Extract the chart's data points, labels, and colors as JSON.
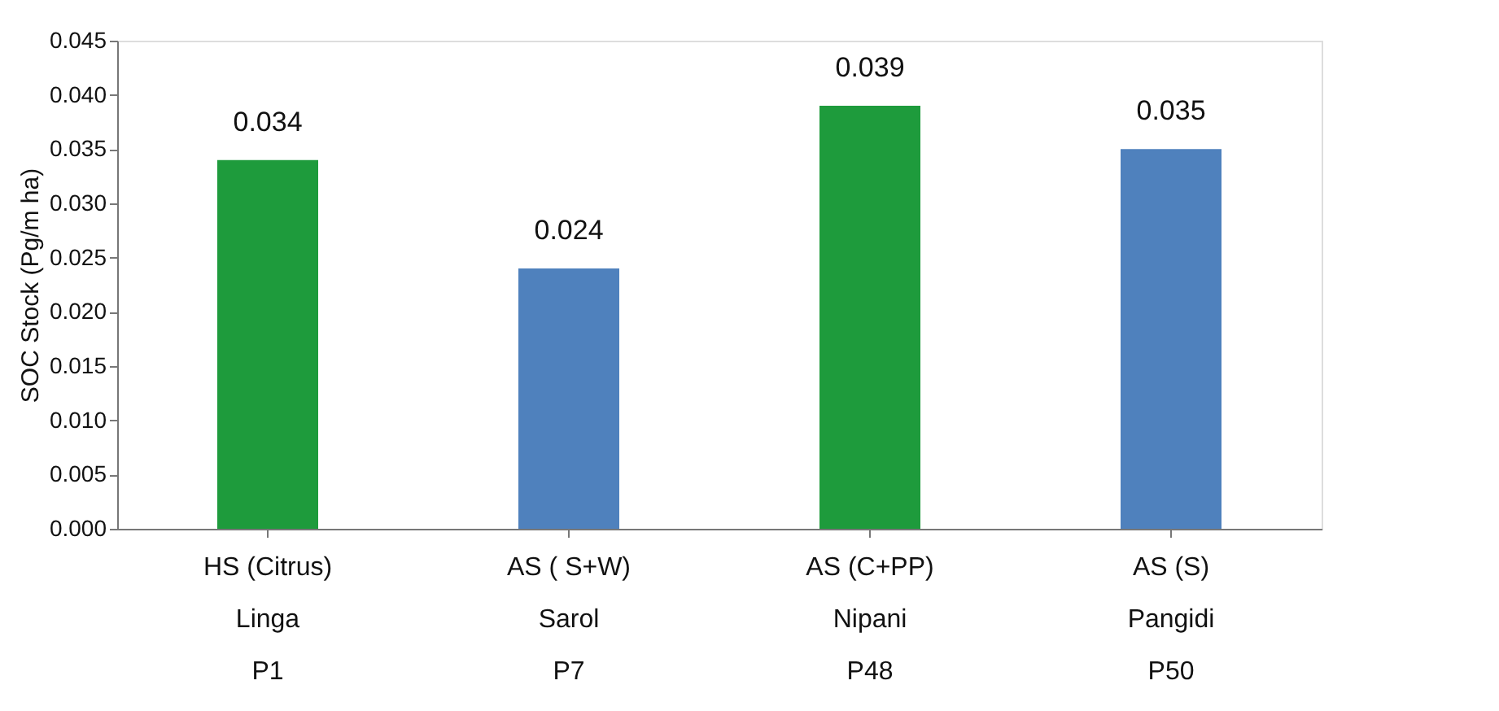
{
  "chart_data": {
    "type": "bar",
    "ylabel": "SOC Stock (Pg/m ha)",
    "categories": [
      "HS (Citrus)\nLinga\nP1",
      "AS ( S+W)\nSarol\nP7",
      "AS (C+PP)\nNipani\nP48",
      "AS (S)\nPangidi\nP50"
    ],
    "values": [
      0.034,
      0.024,
      0.039,
      0.035
    ],
    "colors": [
      "#1e9b3c",
      "#4f81bd",
      "#1e9b3c",
      "#4f81bd"
    ],
    "data_labels": true,
    "ylim": [
      0,
      0.045
    ],
    "yticks": [
      {
        "value": 0,
        "label": "0.000"
      },
      {
        "value": 0.005,
        "label": "0.005"
      },
      {
        "value": 0.01,
        "label": "0.010"
      },
      {
        "value": 0.015,
        "label": "0.015"
      },
      {
        "value": 0.02,
        "label": "0.020"
      },
      {
        "value": 0.025,
        "label": "0.025"
      },
      {
        "value": 0.03,
        "label": "0.030"
      },
      {
        "value": 0.035,
        "label": "0.035"
      },
      {
        "value": 0.04,
        "label": "0.040"
      },
      {
        "value": 0.045,
        "label": "0.045"
      }
    ],
    "grid": false,
    "legend": false
  }
}
